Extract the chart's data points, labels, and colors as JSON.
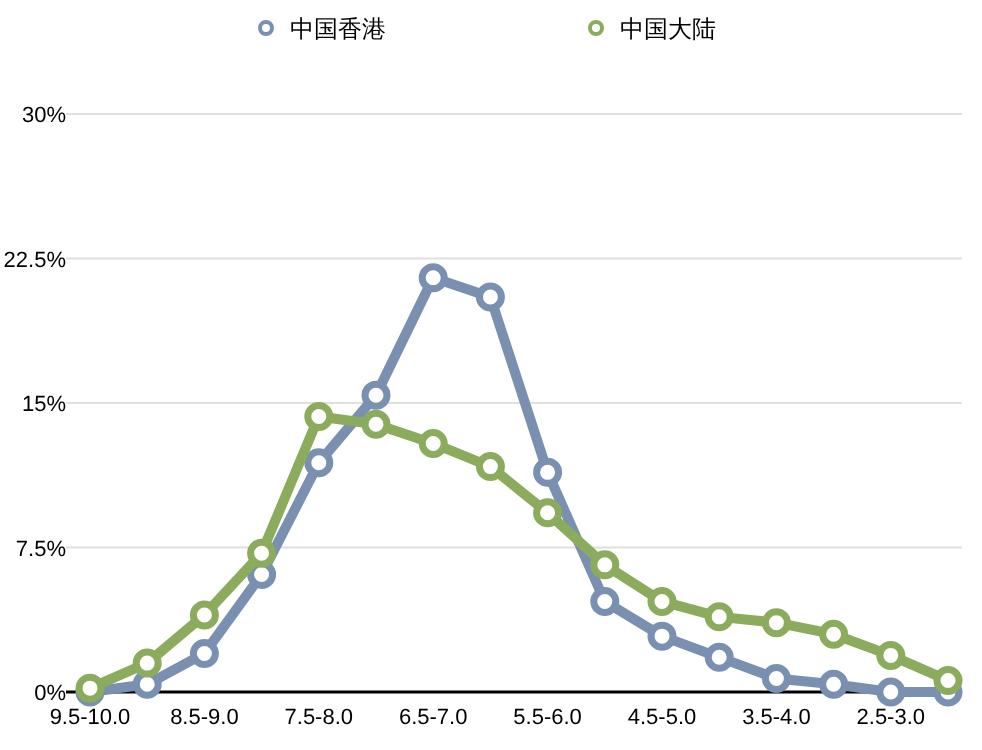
{
  "chart_data": {
    "type": "line",
    "categories": [
      "9.5-10.0",
      null,
      "8.5-9.0",
      null,
      "7.5-8.0",
      null,
      "6.5-7.0",
      null,
      "5.5-6.0",
      null,
      "4.5-5.0",
      null,
      "3.5-4.0",
      null,
      "2.5-3.0",
      null
    ],
    "series": [
      {
        "name": "中国香港",
        "color": "#7990b0",
        "values": [
          0,
          0.4,
          2.0,
          6.1,
          11.9,
          15.4,
          21.5,
          20.5,
          11.4,
          4.7,
          2.9,
          1.8,
          0.7,
          0.4,
          0,
          0
        ]
      },
      {
        "name": "中国大陆",
        "color": "#8aac5c",
        "values": [
          0.2,
          1.5,
          4.0,
          7.2,
          14.3,
          13.9,
          12.9,
          11.7,
          9.3,
          6.6,
          4.7,
          3.9,
          3.6,
          3.0,
          1.9,
          0.6
        ]
      }
    ],
    "ylim": [
      0,
      30
    ],
    "yticks": [
      {
        "value": 0,
        "label": "0%"
      },
      {
        "value": 7.5,
        "label": "7.5%"
      },
      {
        "value": 15,
        "label": "15%"
      },
      {
        "value": 22.5,
        "label": "22.5%"
      },
      {
        "value": 30,
        "label": "30%"
      }
    ],
    "grid": "y",
    "legend": "top",
    "marker": "circle",
    "line_style": "solid"
  }
}
